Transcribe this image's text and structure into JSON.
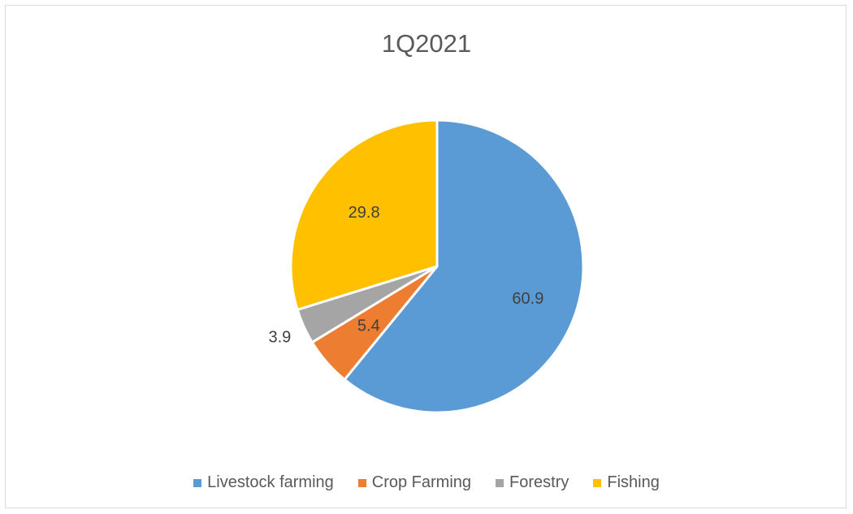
{
  "chart_data": {
    "type": "pie",
    "title": "1Q2021",
    "legend_position": "bottom",
    "slices": [
      {
        "name": "Livestock farming",
        "value": 60.9,
        "label": "60.9",
        "color": "#5b9bd5"
      },
      {
        "name": "Crop Farming",
        "value": 5.4,
        "label": "5.4",
        "color": "#ed7d31"
      },
      {
        "name": "Forestry",
        "value": 3.9,
        "label": "3.9",
        "color": "#a5a5a5"
      },
      {
        "name": "Fishing",
        "value": 29.8,
        "label": "29.8",
        "color": "#ffc000"
      }
    ]
  }
}
